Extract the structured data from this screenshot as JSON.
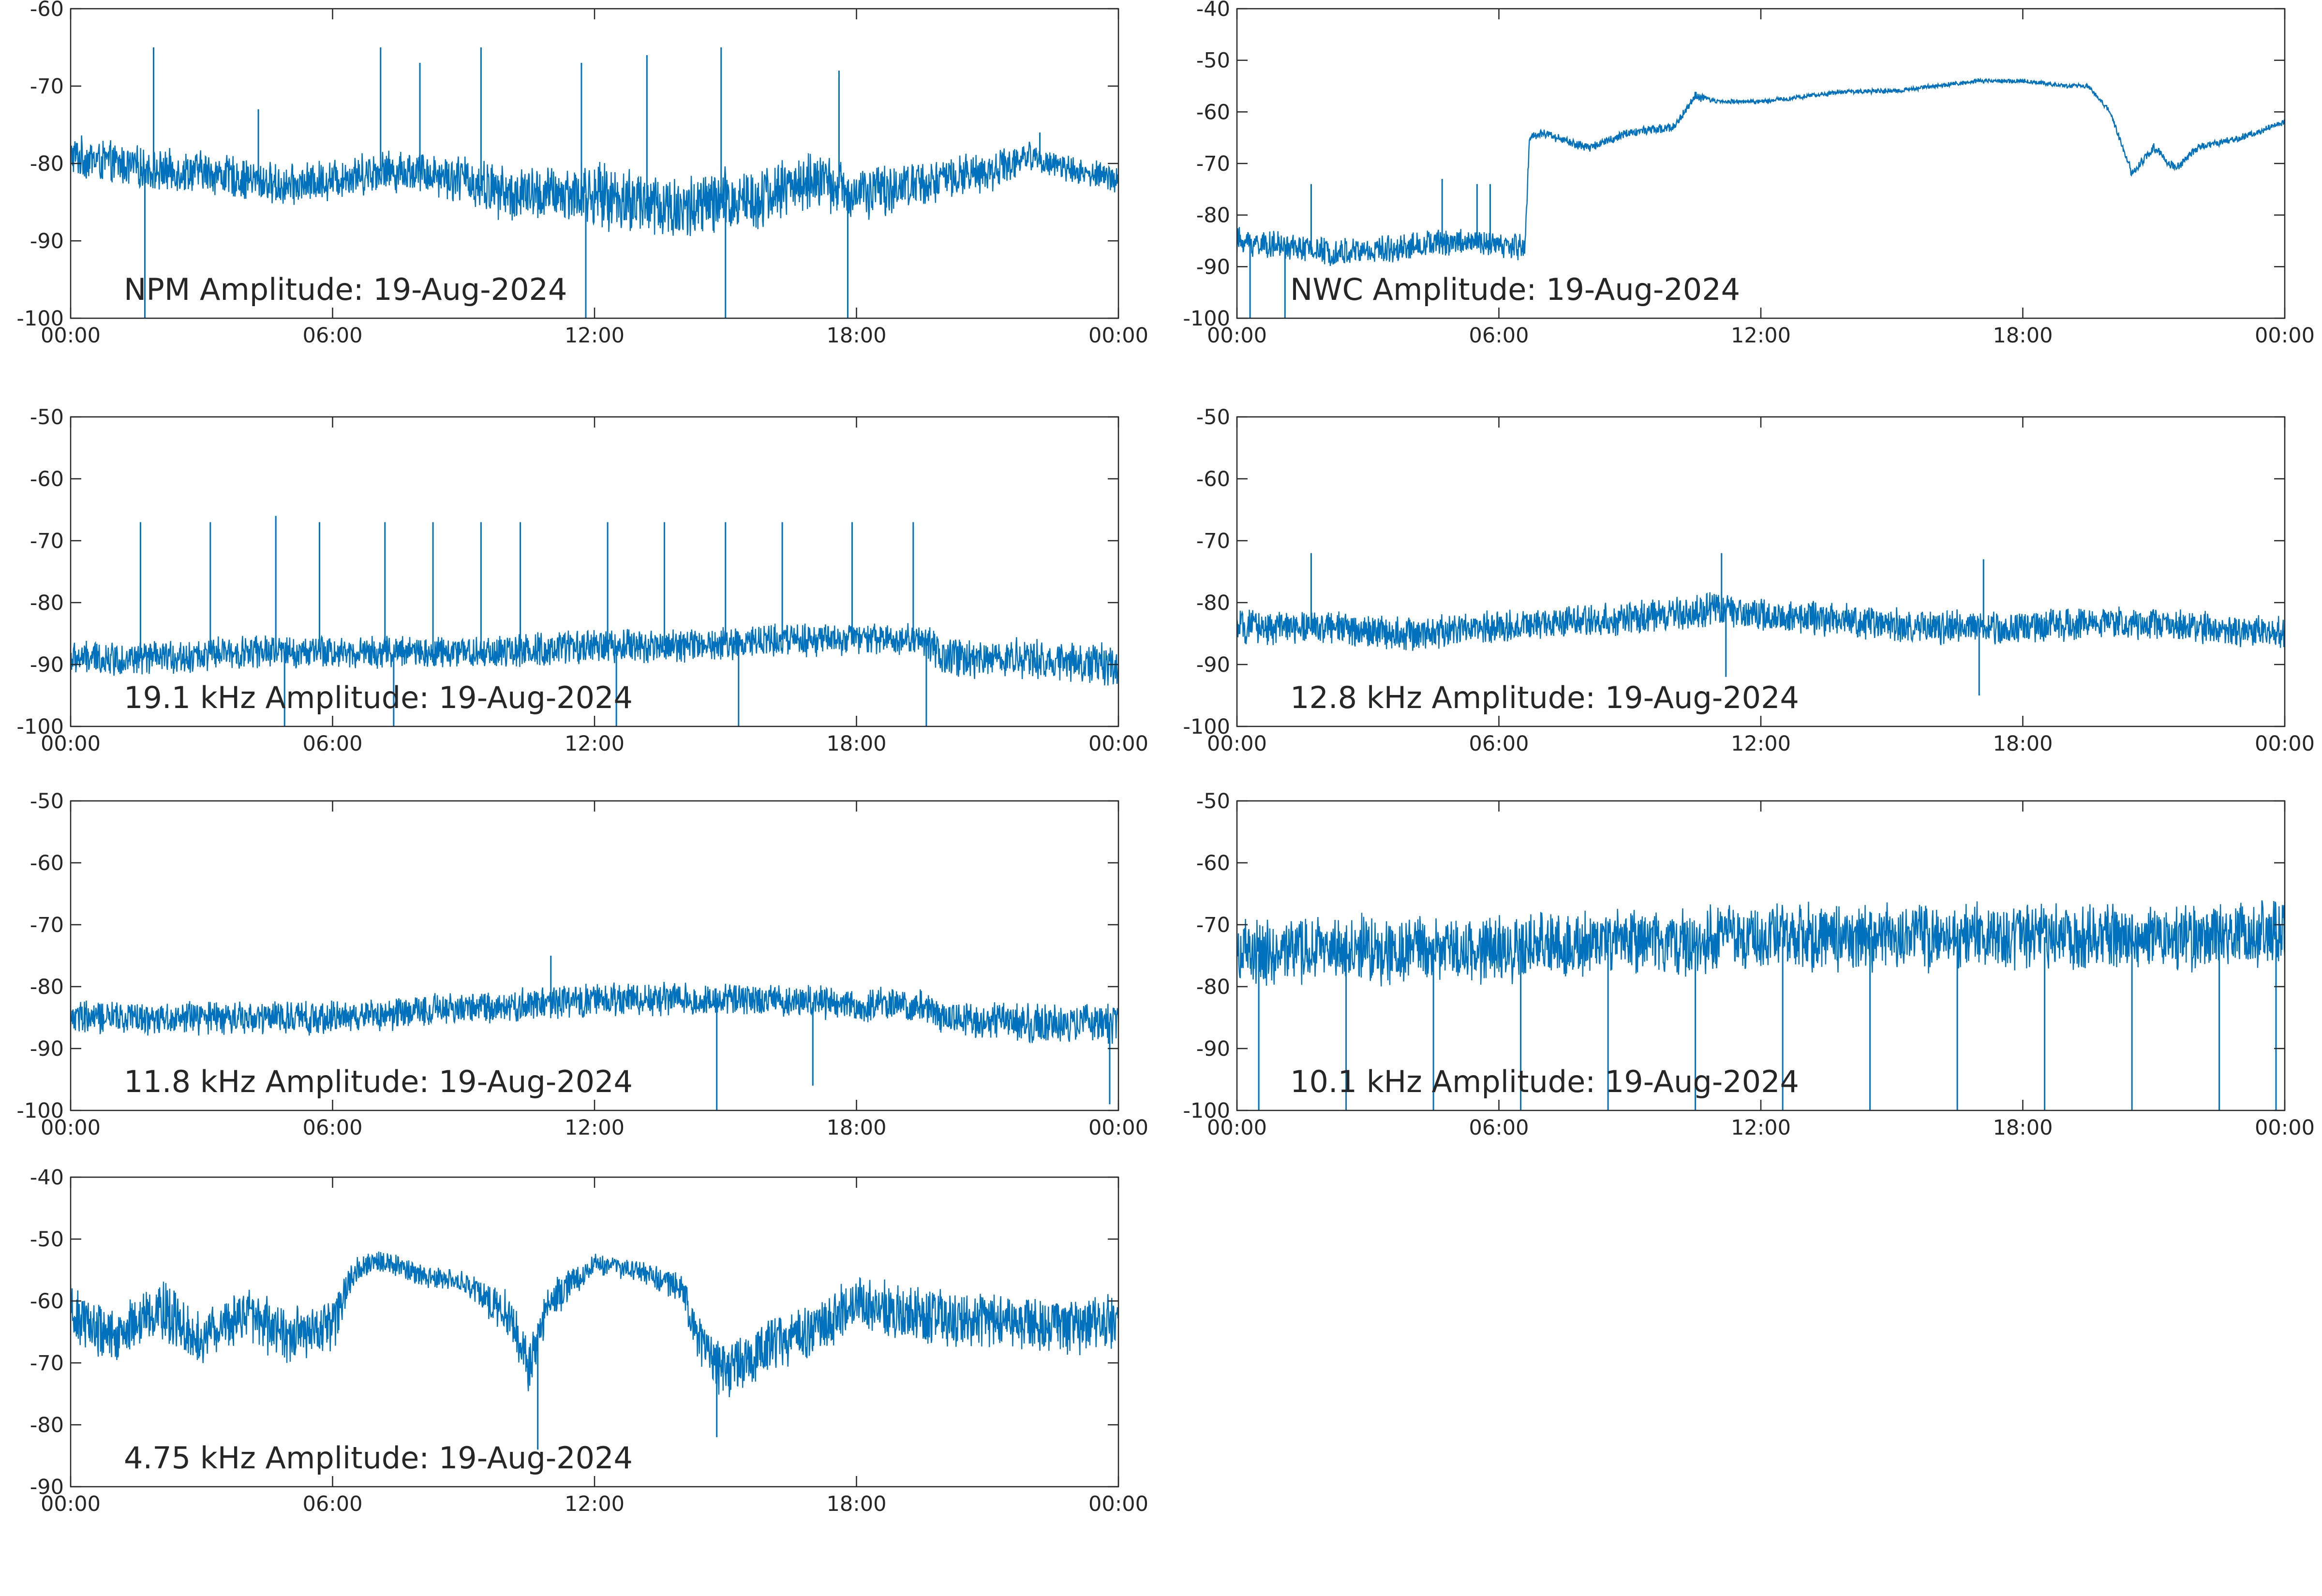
{
  "figure": {
    "line_color": "#0072BD",
    "axis_color": "#262626",
    "x_ticks": [
      "00:00",
      "06:00",
      "12:00",
      "18:00",
      "00:00"
    ],
    "x_range_hours": [
      0,
      24
    ]
  },
  "chart_data": [
    {
      "type": "line",
      "title": "NPM Amplitude: 19-Aug-2024",
      "ylim": [
        -100,
        -60
      ],
      "y_ticks": [
        -60,
        -70,
        -80,
        -90,
        -100
      ],
      "series": [
        {
          "x": [
            0,
            1,
            2,
            3,
            4,
            5,
            6,
            7,
            8,
            9,
            10,
            11,
            12,
            13,
            14,
            15,
            16,
            17,
            18,
            19,
            20,
            21,
            22,
            23,
            24
          ],
          "y": [
            -79,
            -80,
            -81,
            -81,
            -82,
            -83,
            -82,
            -81,
            -81,
            -82,
            -84,
            -84,
            -84,
            -85,
            -86,
            -85,
            -84,
            -82,
            -84,
            -83,
            -82,
            -81,
            -79,
            -81,
            -82
          ],
          "spread": [
            3,
            3,
            3,
            3,
            3,
            3,
            3,
            3,
            3,
            3.5,
            4,
            4,
            4.5,
            5,
            5,
            5,
            4.5,
            4,
            4,
            3.5,
            3,
            3,
            2,
            2,
            2
          ],
          "spikes": [
            {
              "x": 1.9,
              "y": -65
            },
            {
              "x": 4.3,
              "y": -73
            },
            {
              "x": 7.1,
              "y": -65
            },
            {
              "x": 8.0,
              "y": -67
            },
            {
              "x": 9.4,
              "y": -65
            },
            {
              "x": 11.7,
              "y": -67
            },
            {
              "x": 11.8,
              "y": -100
            },
            {
              "x": 13.2,
              "y": -66
            },
            {
              "x": 14.9,
              "y": -65
            },
            {
              "x": 15.0,
              "y": -100
            },
            {
              "x": 17.6,
              "y": -68
            },
            {
              "x": 17.8,
              "y": -100
            },
            {
              "x": 1.7,
              "y": -100
            },
            {
              "x": 22.2,
              "y": -76
            }
          ]
        }
      ]
    },
    {
      "type": "line",
      "title": "NWC Amplitude: 19-Aug-2024",
      "ylim": [
        -100,
        -40
      ],
      "y_ticks": [
        -40,
        -50,
        -60,
        -70,
        -80,
        -90,
        -100
      ],
      "series": [
        {
          "x": [
            0,
            1,
            2,
            3,
            4,
            5,
            6,
            6.6,
            6.7,
            7,
            8,
            9,
            10,
            10.5,
            11,
            12,
            13,
            14,
            15,
            16,
            17,
            18,
            19,
            19.5,
            20,
            20.5,
            21,
            21.5,
            22,
            23,
            24
          ],
          "y": [
            -85,
            -86,
            -87,
            -87,
            -86,
            -85,
            -86,
            -86,
            -65,
            -64,
            -67,
            -64,
            -63,
            -57,
            -58,
            -58,
            -57,
            -56,
            -56,
            -55,
            -54,
            -54,
            -55,
            -55,
            -60,
            -72,
            -67,
            -71,
            -67,
            -65,
            -62
          ],
          "spread": [
            3,
            3,
            3,
            3,
            3,
            3,
            3,
            3,
            1,
            1,
            1,
            1,
            1,
            1,
            0.5,
            0.5,
            0.5,
            0.5,
            0.5,
            0.5,
            0.5,
            0.5,
            0.5,
            0.5,
            0.5,
            1,
            1,
            1,
            0.8,
            0.8,
            0.6
          ],
          "spikes": [
            {
              "x": 1.7,
              "y": -74
            },
            {
              "x": 4.7,
              "y": -73
            },
            {
              "x": 5.5,
              "y": -74
            },
            {
              "x": 5.8,
              "y": -74
            },
            {
              "x": 0.3,
              "y": -100
            },
            {
              "x": 1.1,
              "y": -100
            }
          ]
        }
      ]
    },
    {
      "type": "line",
      "title": "19.1 kHz Amplitude: 19-Aug-2024",
      "ylim": [
        -100,
        -50
      ],
      "y_ticks": [
        -50,
        -60,
        -70,
        -80,
        -90,
        -100
      ],
      "series": [
        {
          "x": [
            0,
            2,
            4,
            6,
            8,
            10,
            12,
            14,
            16,
            18,
            19.5,
            20,
            22,
            24
          ],
          "y": [
            -89,
            -89,
            -88,
            -88,
            -88,
            -88,
            -87,
            -87,
            -86,
            -86,
            -86,
            -89,
            -89,
            -90
          ],
          "spread": [
            3,
            3,
            3,
            3,
            3,
            3,
            3,
            3,
            3,
            3,
            3,
            3.5,
            3.5,
            4
          ],
          "spikes": [
            {
              "x": 1.6,
              "y": -67
            },
            {
              "x": 3.2,
              "y": -67
            },
            {
              "x": 4.7,
              "y": -66
            },
            {
              "x": 5.7,
              "y": -67
            },
            {
              "x": 7.2,
              "y": -67
            },
            {
              "x": 8.3,
              "y": -67
            },
            {
              "x": 9.4,
              "y": -67
            },
            {
              "x": 10.3,
              "y": -67
            },
            {
              "x": 12.3,
              "y": -67
            },
            {
              "x": 13.6,
              "y": -67
            },
            {
              "x": 15.0,
              "y": -67
            },
            {
              "x": 16.3,
              "y": -67
            },
            {
              "x": 17.9,
              "y": -67
            },
            {
              "x": 19.3,
              "y": -67
            },
            {
              "x": 4.9,
              "y": -100
            },
            {
              "x": 7.4,
              "y": -100
            },
            {
              "x": 12.5,
              "y": -100
            },
            {
              "x": 15.3,
              "y": -100
            },
            {
              "x": 19.6,
              "y": -100
            }
          ]
        }
      ]
    },
    {
      "type": "line",
      "title": "12.8 kHz Amplitude: 19-Aug-2024",
      "ylim": [
        -100,
        -50
      ],
      "y_ticks": [
        -50,
        -60,
        -70,
        -80,
        -90,
        -100
      ],
      "series": [
        {
          "x": [
            0,
            2,
            4,
            6,
            8,
            10,
            11,
            12,
            14,
            16,
            18,
            20,
            22,
            24
          ],
          "y": [
            -84,
            -84,
            -85,
            -84,
            -83,
            -82,
            -81,
            -82,
            -83,
            -84,
            -84,
            -83,
            -84,
            -85
          ],
          "spread": [
            3,
            3,
            3,
            3,
            3,
            3,
            3,
            3,
            3,
            3,
            3,
            3,
            3,
            3
          ],
          "spikes": [
            {
              "x": 1.7,
              "y": -72
            },
            {
              "x": 11.1,
              "y": -72
            },
            {
              "x": 11.2,
              "y": -92
            },
            {
              "x": 17.1,
              "y": -73
            },
            {
              "x": 17.0,
              "y": -95
            }
          ]
        }
      ]
    },
    {
      "type": "line",
      "title": "11.8 kHz Amplitude: 19-Aug-2024",
      "ylim": [
        -100,
        -50
      ],
      "y_ticks": [
        -50,
        -60,
        -70,
        -80,
        -90,
        -100
      ],
      "series": [
        {
          "x": [
            0,
            2,
            4,
            6,
            8,
            10,
            12,
            14,
            16,
            18,
            19.5,
            20,
            22,
            24
          ],
          "y": [
            -85,
            -85,
            -85,
            -85,
            -84,
            -83,
            -82,
            -82,
            -82,
            -83,
            -83,
            -85,
            -86,
            -86
          ],
          "spread": [
            3,
            3,
            3,
            3,
            3,
            3,
            3,
            3,
            3,
            3,
            3,
            3,
            3.5,
            3.5
          ],
          "spikes": [
            {
              "x": 11.0,
              "y": -75
            },
            {
              "x": 14.8,
              "y": -100
            },
            {
              "x": 17.0,
              "y": -96
            },
            {
              "x": 23.8,
              "y": -99
            }
          ]
        }
      ]
    },
    {
      "type": "line",
      "title": "10.1 kHz Amplitude: 19-Aug-2024",
      "ylim": [
        -100,
        -50
      ],
      "y_ticks": [
        -50,
        -60,
        -70,
        -80,
        -90,
        -100
      ],
      "series": [
        {
          "x": [
            0,
            2,
            4,
            6,
            8,
            10,
            12,
            14,
            16,
            18,
            20,
            22,
            24
          ],
          "y": [
            -75,
            -74,
            -74,
            -74,
            -73,
            -73,
            -72,
            -72,
            -72,
            -72,
            -72,
            -72,
            -71
          ],
          "spread": [
            6,
            6,
            6,
            6,
            6,
            6,
            6,
            6,
            6,
            6,
            6,
            6,
            6
          ],
          "spikes": [
            {
              "x": 0.5,
              "y": -100
            },
            {
              "x": 2.5,
              "y": -100
            },
            {
              "x": 4.5,
              "y": -100
            },
            {
              "x": 6.5,
              "y": -100
            },
            {
              "x": 8.5,
              "y": -100
            },
            {
              "x": 10.5,
              "y": -100
            },
            {
              "x": 12.5,
              "y": -100
            },
            {
              "x": 14.5,
              "y": -100
            },
            {
              "x": 16.5,
              "y": -100
            },
            {
              "x": 18.5,
              "y": -100
            },
            {
              "x": 20.5,
              "y": -100
            },
            {
              "x": 22.5,
              "y": -100
            },
            {
              "x": 23.8,
              "y": -100
            }
          ]
        }
      ]
    },
    {
      "type": "line",
      "title": "4.75 kHz Amplitude: 19-Aug-2024",
      "ylim": [
        -90,
        -40
      ],
      "y_ticks": [
        -40,
        -50,
        -60,
        -70,
        -80,
        -90
      ],
      "series": [
        {
          "x": [
            0,
            1,
            2,
            3,
            4,
            5,
            6,
            6.5,
            7,
            8,
            9,
            10,
            10.5,
            11,
            12,
            13,
            14,
            14.5,
            15,
            16,
            17,
            18,
            19,
            20,
            21,
            22,
            23,
            24
          ],
          "y": [
            -62,
            -66,
            -61,
            -66,
            -62,
            -66,
            -64,
            -55,
            -53,
            -56,
            -57,
            -62,
            -70,
            -60,
            -54,
            -55,
            -58,
            -68,
            -72,
            -67,
            -65,
            -60,
            -62,
            -63,
            -63,
            -64,
            -64,
            -63
          ],
          "spread": [
            5,
            5,
            5,
            5,
            5,
            5,
            5,
            3,
            2,
            2,
            2,
            4,
            5,
            4,
            2,
            2,
            3,
            5,
            5,
            5,
            5,
            5,
            5,
            5,
            5,
            5,
            5,
            5
          ],
          "spikes": [
            {
              "x": 10.7,
              "y": -84
            },
            {
              "x": 14.8,
              "y": -82
            }
          ]
        }
      ]
    }
  ]
}
